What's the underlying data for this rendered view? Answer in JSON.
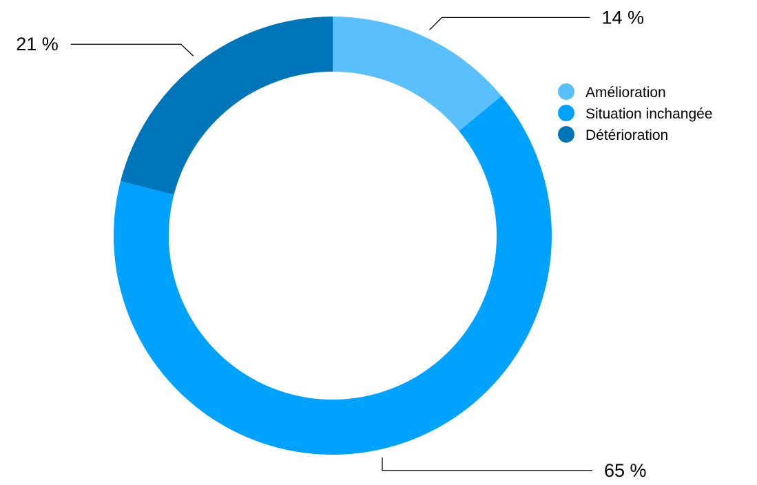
{
  "chart_data": {
    "type": "pie",
    "variant": "donut",
    "legend_position": "right",
    "series": [
      {
        "name": "Amélioration",
        "value": 14,
        "label": "14 %",
        "color": "#5AC0FD"
      },
      {
        "name": "Situation inchangée",
        "value": 65,
        "label": "65 %",
        "color": "#00A2FF"
      },
      {
        "name": "Détérioration",
        "value": 21,
        "label": "21 %",
        "color": "#0076BA"
      }
    ]
  }
}
